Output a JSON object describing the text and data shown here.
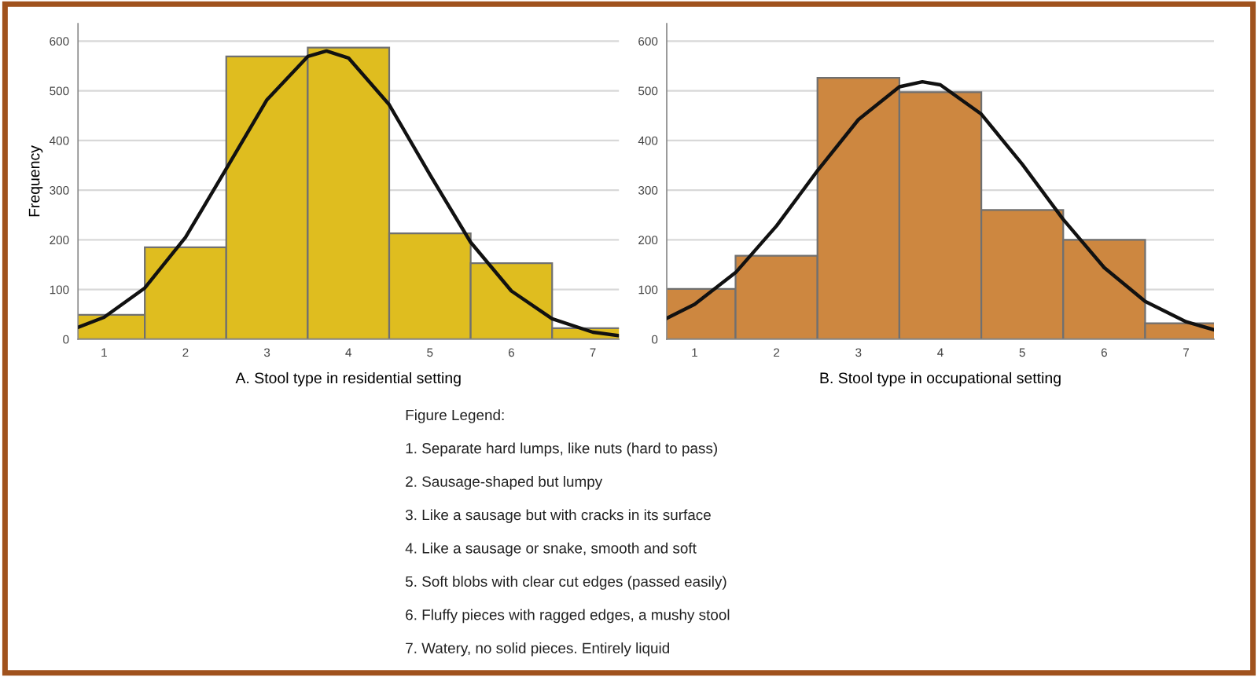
{
  "chart_data": [
    {
      "type": "histogram",
      "xlabel": "A. Stool type in residential setting",
      "ylabel": "Frequency",
      "bins": [
        0.5,
        1.5,
        2.5,
        3.5,
        4.5,
        5.5,
        6.5,
        7.5
      ],
      "values": [
        49,
        185,
        569,
        587,
        213,
        153,
        22
      ],
      "color": "#dfbd1f",
      "xlim": [
        0.68,
        7.32
      ],
      "xticks": [
        1,
        2,
        3,
        4,
        5,
        6,
        7
      ],
      "ylim": [
        0,
        635
      ],
      "yticks": [
        0,
        100,
        200,
        300,
        400,
        500,
        600
      ],
      "grid": "y",
      "series": [
        {
          "type": "line",
          "color": "#111111",
          "x": [
            0.68,
            1,
            1.5,
            2,
            2.5,
            3,
            3.5,
            3.73,
            4,
            4.5,
            5,
            5.5,
            6,
            6.5,
            7,
            7.32
          ],
          "values": [
            24,
            44,
            103,
            205,
            343,
            482,
            569,
            580,
            566,
            472,
            331,
            195,
            97,
            41,
            14,
            7
          ]
        }
      ],
      "annotations": [
        "Figure Legend:",
        "1. Separate hard lumps, like nuts (hard to pass)",
        "2. Sausage-shaped but lumpy",
        "3. Like a sausage but with cracks in its surface",
        "4. Like a sausage or snake, smooth and soft",
        "5. Soft blobs with clear cut edges (passed easily)",
        "6. Fluffy pieces with ragged edges, a mushy stool",
        "7. Watery, no solid pieces. Entirely liquid"
      ]
    },
    {
      "type": "histogram",
      "xlabel": "B. Stool type in occupational setting",
      "bins": [
        0.5,
        1.5,
        2.5,
        3.5,
        4.5,
        5.5,
        6.5,
        7.5
      ],
      "values": [
        101,
        168,
        526,
        497,
        260,
        200,
        32
      ],
      "color": "#cd8740",
      "xlim": [
        0.66,
        7.34
      ],
      "xticks": [
        1,
        2,
        3,
        4,
        5,
        6,
        7
      ],
      "ylim": [
        0,
        635
      ],
      "yticks": [
        0,
        100,
        200,
        300,
        400,
        500,
        600
      ],
      "grid": "y",
      "series": [
        {
          "type": "line",
          "color": "#111111",
          "x": [
            0.66,
            1,
            1.5,
            2,
            2.5,
            3,
            3.5,
            3.78,
            4,
            4.5,
            5,
            5.5,
            6,
            6.5,
            7,
            7.34
          ],
          "values": [
            42,
            70,
            134,
            228,
            339,
            442,
            508,
            518,
            512,
            453,
            352,
            241,
            144,
            76,
            35,
            19
          ]
        }
      ]
    }
  ]
}
